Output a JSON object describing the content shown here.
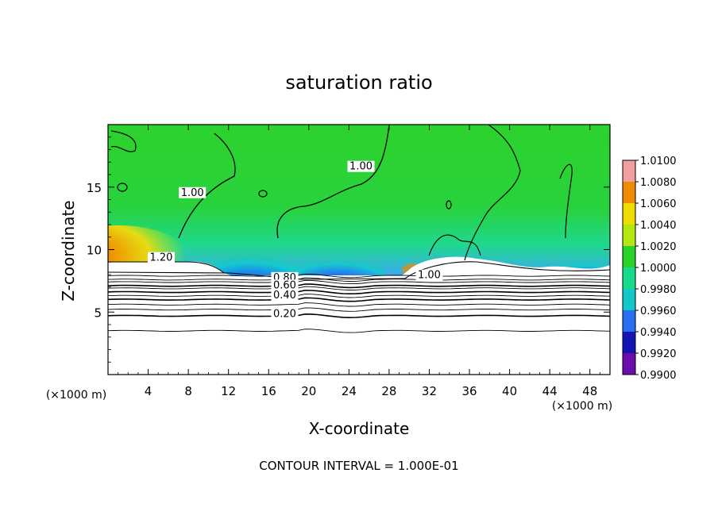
{
  "chart_data": {
    "type": "heatmap",
    "title": "saturation ratio",
    "xlabel": "X-coordinate",
    "ylabel": "Z-coordinate",
    "x_unit": "(×1000 m)",
    "y_unit": "(×1000 m)",
    "xlim": [
      0,
      50
    ],
    "ylim": [
      0,
      20
    ],
    "x_ticks": [
      4,
      8,
      12,
      16,
      20,
      24,
      28,
      32,
      36,
      40,
      44,
      48
    ],
    "y_ticks": [
      5,
      10,
      15
    ],
    "colorbar": {
      "levels": [
        "0.9900",
        "0.9920",
        "0.9940",
        "0.9960",
        "0.9980",
        "1.0000",
        "1.0020",
        "1.0040",
        "1.0060",
        "1.0080",
        "1.0100"
      ],
      "colors": [
        "#6a0dad",
        "#1414b4",
        "#2a6ef0",
        "#14c8c8",
        "#14dc8c",
        "#28d228",
        "#b4e614",
        "#f0dc00",
        "#f08c00",
        "#e61e14",
        "#f0a0a0"
      ]
    },
    "contour_labels": [
      {
        "text": "1.20",
        "x": 5.3,
        "y": 9.1
      },
      {
        "text": "0.80",
        "x": 17.6,
        "y": 7.5
      },
      {
        "text": "0.60",
        "x": 17.6,
        "y": 6.9
      },
      {
        "text": "0.40",
        "x": 17.6,
        "y": 6.1
      },
      {
        "text": "0.20",
        "x": 17.6,
        "y": 4.6
      },
      {
        "text": "1.00",
        "x": 8.4,
        "y": 14.3
      },
      {
        "text": "1.00",
        "x": 25.2,
        "y": 16.4
      },
      {
        "text": "1.00",
        "x": 32.0,
        "y": 7.7
      }
    ],
    "footer": "CONTOUR INTERVAL = 1.000E-01",
    "grid": false
  }
}
